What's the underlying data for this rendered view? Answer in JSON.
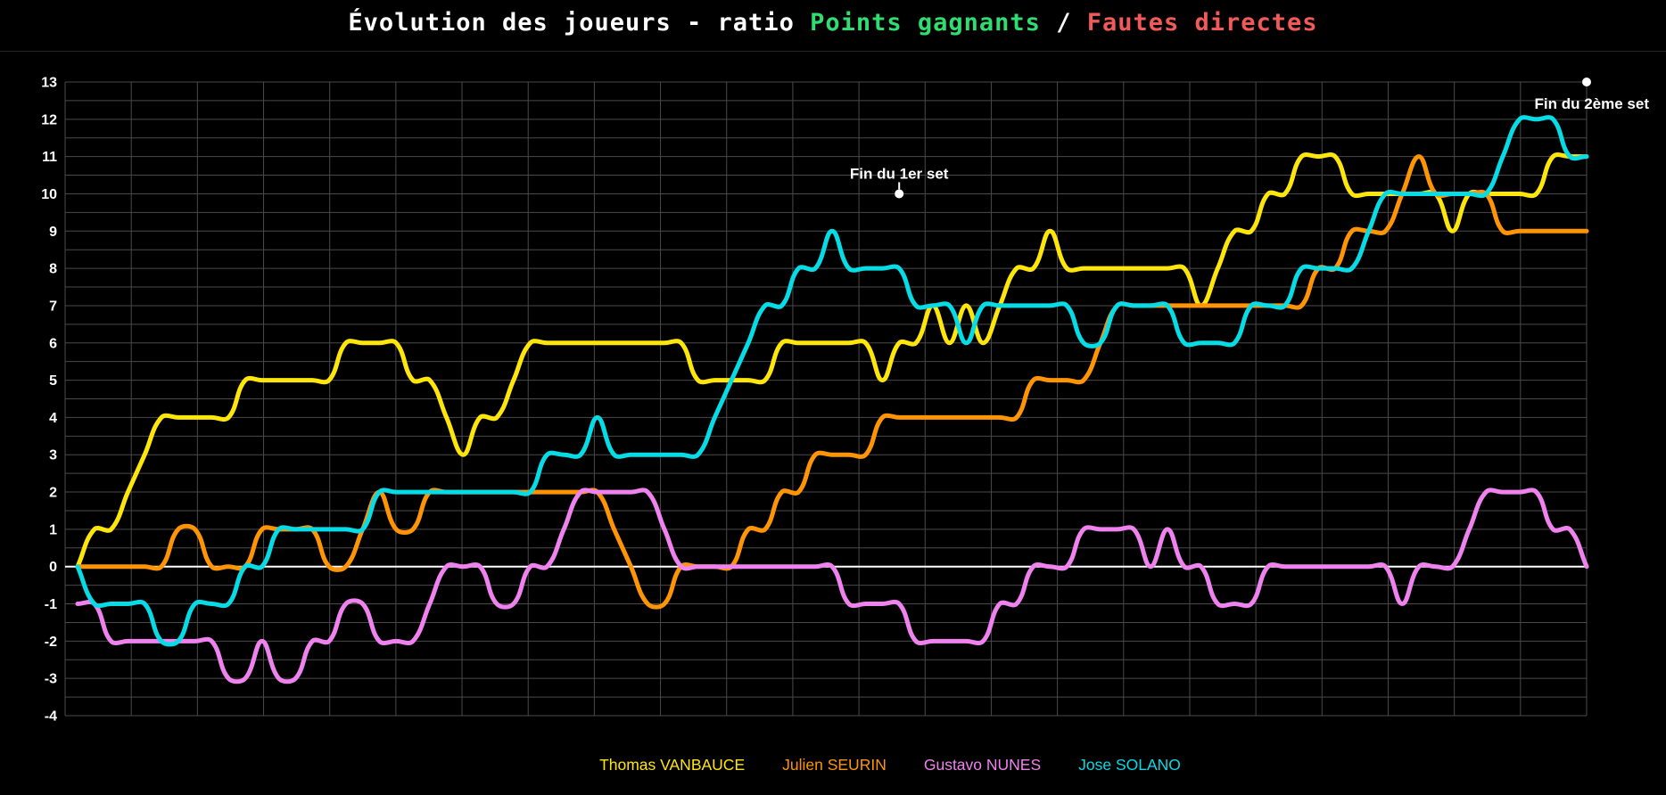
{
  "title": {
    "prefix": "Évolution des joueurs - ratio ",
    "highlight_green": "Points gagnants",
    "separator": " / ",
    "highlight_red": "Fautes directes"
  },
  "colors": {
    "background": "#000000",
    "grid": "#4a4a4a",
    "zero_line": "#ffffff",
    "text": "#ffffff",
    "title_green": "#30dd70",
    "title_red": "#f25a5a"
  },
  "y_axis": {
    "tick_min": -4,
    "tick_max": 13,
    "tick_step": 1,
    "labels": [
      "13",
      "12",
      "11",
      "10",
      "9",
      "8",
      "7",
      "6",
      "5",
      "4",
      "3",
      "2",
      "1",
      "0",
      "-1",
      "-2",
      "-3",
      "-4"
    ]
  },
  "legend": {
    "items": [
      {
        "label": "Thomas VANBAUCE",
        "color": "#ffe60a"
      },
      {
        "label": "Julien SEURIN",
        "color": "#ff9505"
      },
      {
        "label": "Gustavo NUNES",
        "color": "#ef82ef"
      },
      {
        "label": "Jose SOLANO",
        "color": "#06dce6"
      }
    ]
  },
  "chart_data": {
    "type": "line",
    "title": "Évolution des joueurs - ratio Points gagnants / Fautes directes",
    "xlabel": "",
    "ylabel": "",
    "ylim": [
      -4,
      13
    ],
    "ytick_step": 1,
    "grid_substep": 0.5,
    "x_count": 91,
    "x_tick_labels_visible": false,
    "grid": true,
    "legend_position": "bottom",
    "smoothing_tension": 0.4,
    "line_width": 5,
    "series": [
      {
        "name": "Thomas VANBAUCE",
        "color": "#ffe60a",
        "values": [
          0,
          1,
          1,
          2,
          3,
          4,
          4,
          4,
          4,
          4,
          5,
          5,
          5,
          5,
          5,
          5,
          6,
          6,
          6,
          6,
          5,
          5,
          4,
          3,
          4,
          4,
          5,
          6,
          6,
          6,
          6,
          6,
          6,
          6,
          6,
          6,
          6,
          5,
          5,
          5,
          5,
          5,
          6,
          6,
          6,
          6,
          6,
          6,
          5,
          6,
          6,
          7,
          6,
          7,
          6,
          7,
          8,
          8,
          9,
          8,
          8,
          8,
          8,
          8,
          8,
          8,
          8,
          7,
          8,
          9,
          9,
          10,
          10,
          11,
          11,
          11,
          10,
          10,
          10,
          10,
          10,
          10,
          9,
          10,
          10,
          10,
          10,
          10,
          11,
          11,
          11
        ]
      },
      {
        "name": "Julien SEURIN",
        "color": "#ff9505",
        "values": [
          0,
          0,
          0,
          0,
          0,
          0,
          1,
          1,
          0,
          0,
          0,
          1,
          1,
          1,
          1,
          0,
          0,
          1,
          2,
          1,
          1,
          2,
          2,
          2,
          2,
          2,
          2,
          2,
          2,
          2,
          2,
          2,
          1,
          0,
          -1,
          -1,
          0,
          0,
          0,
          0,
          1,
          1,
          2,
          2,
          3,
          3,
          3,
          3,
          4,
          4,
          4,
          4,
          4,
          4,
          4,
          4,
          4,
          5,
          5,
          5,
          5,
          6,
          7,
          7,
          7,
          7,
          7,
          7,
          7,
          7,
          7,
          7,
          7,
          7,
          8,
          8,
          9,
          9,
          9,
          10,
          11,
          10,
          10,
          10,
          10,
          9,
          9,
          9,
          9,
          9,
          9
        ]
      },
      {
        "name": "Gustavo NUNES",
        "color": "#ef82ef",
        "values": [
          -1,
          -1,
          -2,
          -2,
          -2,
          -2,
          -2,
          -2,
          -2,
          -3,
          -3,
          -2,
          -3,
          -3,
          -2,
          -2,
          -1,
          -1,
          -2,
          -2,
          -2,
          -1,
          0,
          0,
          0,
          -1,
          -1,
          0,
          0,
          1,
          2,
          2,
          2,
          2,
          2,
          1,
          0,
          0,
          0,
          0,
          0,
          0,
          0,
          0,
          0,
          0,
          -1,
          -1,
          -1,
          -1,
          -2,
          -2,
          -2,
          -2,
          -2,
          -1,
          -1,
          0,
          0,
          0,
          1,
          1,
          1,
          1,
          0,
          1,
          0,
          0,
          -1,
          -1,
          -1,
          0,
          0,
          0,
          0,
          0,
          0,
          0,
          0,
          -1,
          0,
          0,
          0,
          1,
          2,
          2,
          2,
          2,
          1,
          1,
          0
        ]
      },
      {
        "name": "Jose SOLANO",
        "color": "#06dce6",
        "values": [
          0,
          -1,
          -1,
          -1,
          -1,
          -2,
          -2,
          -1,
          -1,
          -1,
          0,
          0,
          1,
          1,
          1,
          1,
          1,
          1,
          2,
          2,
          2,
          2,
          2,
          2,
          2,
          2,
          2,
          2,
          3,
          3,
          3,
          4,
          3,
          3,
          3,
          3,
          3,
          3,
          4,
          5,
          6,
          7,
          7,
          8,
          8,
          9,
          8,
          8,
          8,
          8,
          7,
          7,
          7,
          6,
          7,
          7,
          7,
          7,
          7,
          7,
          6,
          6,
          7,
          7,
          7,
          7,
          6,
          6,
          6,
          6,
          7,
          7,
          7,
          8,
          8,
          8,
          8,
          9,
          10,
          10,
          10,
          10,
          10,
          10,
          10,
          11,
          12,
          12,
          12,
          11,
          11
        ]
      }
    ],
    "annotations": [
      {
        "label": "Fin du 1er set",
        "x_index": 49,
        "y": 10,
        "label_position": "above"
      },
      {
        "label": "Fin du 2ème set",
        "x_index": 90,
        "y": 13,
        "label_position": "below-left"
      }
    ]
  }
}
